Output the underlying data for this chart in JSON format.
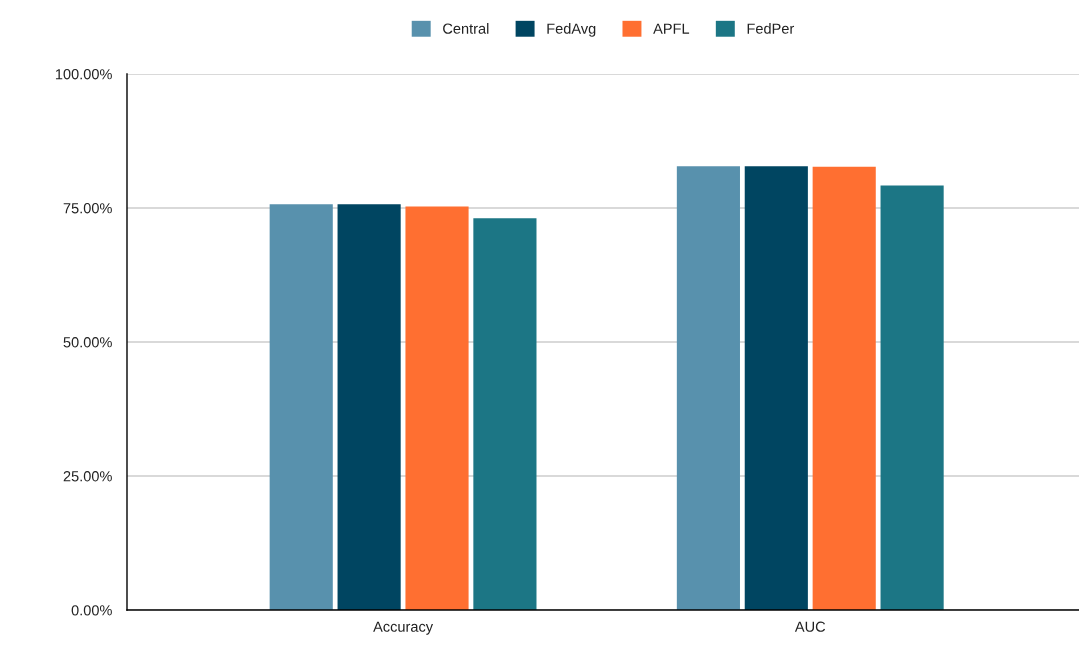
{
  "chart_data": {
    "type": "bar",
    "categories": [
      "Accuracy",
      "AUC"
    ],
    "series": [
      {
        "name": "Central",
        "color": "#5891ad",
        "values": [
          75.7,
          82.8
        ]
      },
      {
        "name": "FedAvg",
        "color": "#004561",
        "values": [
          75.7,
          82.8
        ]
      },
      {
        "name": "APFL",
        "color": "#ff6f31",
        "values": [
          75.3,
          82.7
        ]
      },
      {
        "name": "FedPer",
        "color": "#1c7685",
        "values": [
          73.1,
          79.2
        ]
      }
    ],
    "ylim": [
      0,
      100
    ],
    "yticks": [
      {
        "value": 0,
        "label": "0.00%"
      },
      {
        "value": 25,
        "label": "25.00%"
      },
      {
        "value": 50,
        "label": "50.00%"
      },
      {
        "value": 75,
        "label": "75.00%"
      },
      {
        "value": 100,
        "label": "100.00%"
      }
    ],
    "grid": "y",
    "legend": "top"
  }
}
